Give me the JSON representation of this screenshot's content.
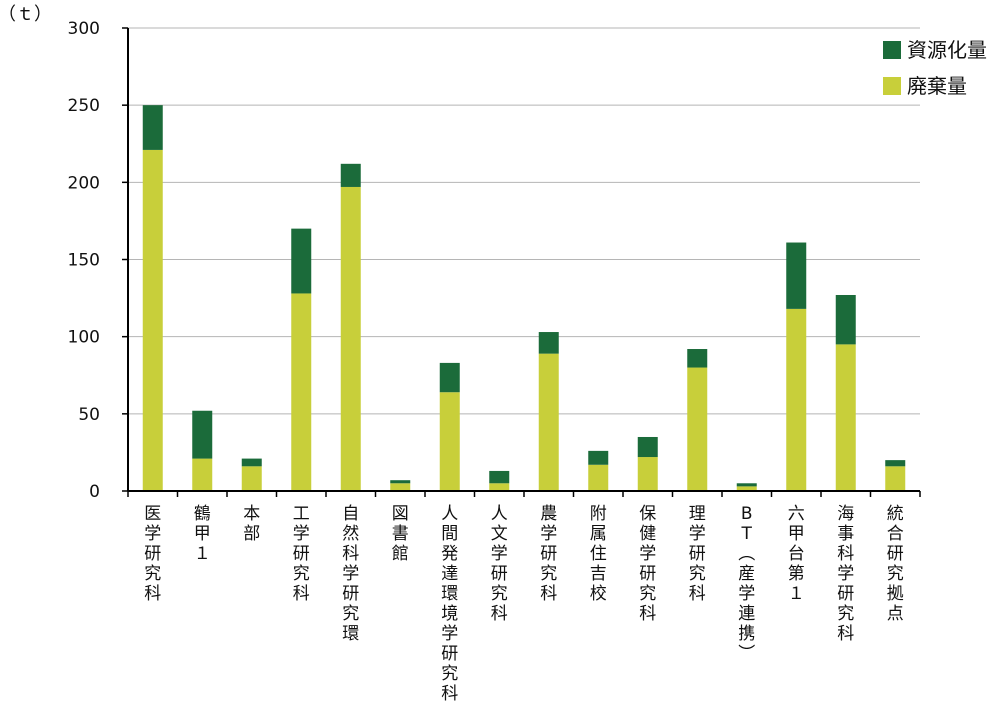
{
  "chart_data": {
    "type": "bar",
    "stacked": true,
    "unit_label": "（ｔ）",
    "ylim": [
      0,
      300
    ],
    "yticks": [
      0,
      50,
      100,
      150,
      200,
      250,
      300
    ],
    "grid": true,
    "legend_position": "top-right",
    "categories": [
      "医学研究科",
      "鶴甲１",
      "本部",
      "工学研究科",
      "自然科学研究環",
      "図書館",
      "人間発達環境学研究科",
      "人文学研究科",
      "農学研究科",
      "附属住吉校",
      "保健学研究科",
      "理学研究科",
      "BT（産学連携）",
      "六甲台第１",
      "海事科学研究科",
      "統合研究拠点"
    ],
    "series": [
      {
        "name": "廃棄量",
        "color": "#c8cf3a",
        "values": [
          221,
          21,
          16,
          128,
          197,
          5,
          64,
          5,
          89,
          17,
          22,
          80,
          3,
          118,
          95,
          16
        ]
      },
      {
        "name": "資源化量",
        "color": "#1b6b3a",
        "values": [
          29,
          31,
          5,
          42,
          15,
          2,
          19,
          8,
          14,
          9,
          13,
          12,
          2,
          43,
          32,
          4
        ]
      }
    ],
    "legend_order": [
      "資源化量",
      "廃棄量"
    ]
  }
}
